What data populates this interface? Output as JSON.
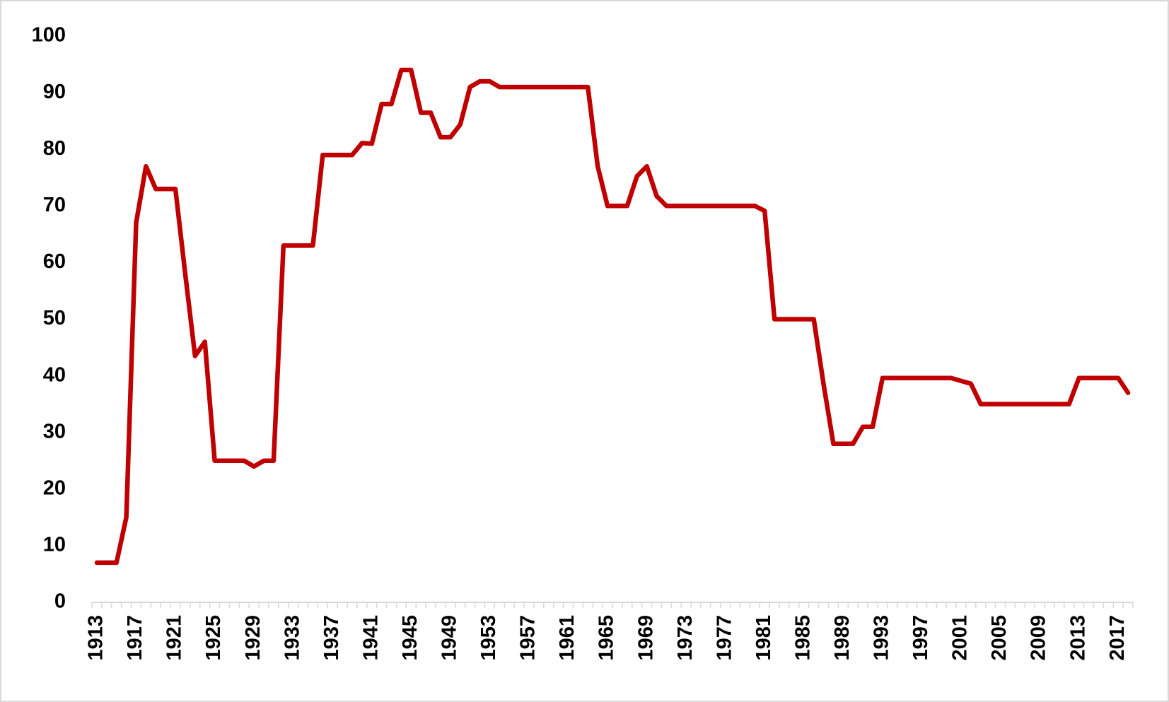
{
  "chart_data": {
    "type": "line",
    "categories": [
      "1913",
      null,
      null,
      null,
      "1917",
      null,
      null,
      null,
      "1921",
      null,
      null,
      null,
      "1925",
      null,
      null,
      null,
      "1929",
      null,
      null,
      null,
      "1933",
      null,
      null,
      null,
      "1937",
      null,
      null,
      null,
      "1941",
      null,
      null,
      null,
      "1945",
      null,
      null,
      null,
      "1949",
      null,
      null,
      null,
      "1953",
      null,
      null,
      null,
      "1957",
      null,
      null,
      null,
      "1961",
      null,
      null,
      null,
      "1965",
      null,
      null,
      null,
      "1969",
      null,
      null,
      null,
      "1973",
      null,
      null,
      null,
      "1977",
      null,
      null,
      null,
      "1981",
      null,
      null,
      null,
      "1985",
      null,
      null,
      null,
      "1989",
      null,
      null,
      null,
      "1993",
      null,
      null,
      null,
      "1997",
      null,
      null,
      null,
      "2001",
      null,
      null,
      null,
      "2005",
      null,
      null,
      null,
      "2009",
      null,
      null,
      null,
      "2013",
      null,
      null,
      null,
      "2017",
      null
    ],
    "values": [
      7,
      7,
      7,
      15,
      67,
      77,
      73,
      73,
      73,
      58,
      43.5,
      46,
      25,
      25,
      25,
      25,
      24,
      25,
      25,
      63,
      63,
      63,
      63,
      79,
      79,
      79,
      79,
      81.1,
      81,
      88,
      88,
      94,
      94,
      86.45,
      86.45,
      82.13,
      82.13,
      84.36,
      91,
      92,
      92,
      91,
      91,
      91,
      91,
      91,
      91,
      91,
      91,
      91,
      91,
      77,
      70,
      70,
      70,
      75.25,
      77,
      71.75,
      70,
      70,
      70,
      70,
      70,
      70,
      70,
      70,
      70,
      70,
      69.13,
      50,
      50,
      50,
      50,
      50,
      38.5,
      28,
      28,
      28,
      31,
      31,
      39.6,
      39.6,
      39.6,
      39.6,
      39.6,
      39.6,
      39.6,
      39.6,
      39.1,
      38.6,
      35,
      35,
      35,
      35,
      35,
      35,
      35,
      35,
      35,
      35,
      39.6,
      39.6,
      39.6,
      39.6,
      39.6,
      37
    ],
    "color": "#c00000",
    "ylim": [
      0,
      100
    ],
    "yticks": [
      0,
      10,
      20,
      30,
      40,
      50,
      60,
      70,
      80,
      90,
      100
    ]
  }
}
